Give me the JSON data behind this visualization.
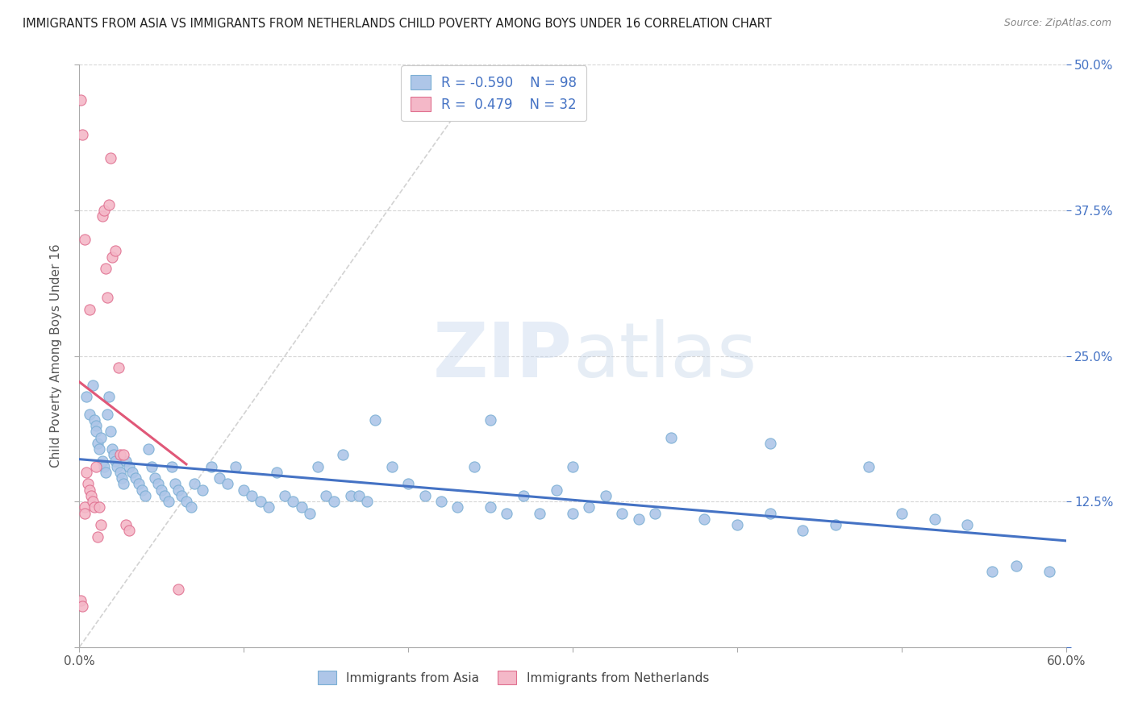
{
  "title": "IMMIGRANTS FROM ASIA VS IMMIGRANTS FROM NETHERLANDS CHILD POVERTY AMONG BOYS UNDER 16 CORRELATION CHART",
  "source": "Source: ZipAtlas.com",
  "ylabel": "Child Poverty Among Boys Under 16",
  "xmin": 0.0,
  "xmax": 0.6,
  "ymin": 0.0,
  "ymax": 0.5,
  "yticks": [
    0.0,
    0.125,
    0.25,
    0.375,
    0.5
  ],
  "ytick_labels": [
    "",
    "12.5%",
    "25.0%",
    "37.5%",
    "50.0%"
  ],
  "xtick_positions": [
    0.0,
    0.1,
    0.2,
    0.3,
    0.4,
    0.5,
    0.6
  ],
  "legend_series": [
    {
      "label": "Immigrants from Asia",
      "color": "#aec6e8",
      "edge_color": "#7bafd4",
      "trend_color": "#4472c4",
      "R": -0.59,
      "N": 98
    },
    {
      "label": "Immigrants from Netherlands",
      "color": "#f4b8c8",
      "edge_color": "#e07090",
      "trend_color": "#e05878",
      "R": 0.479,
      "N": 32
    }
  ],
  "series_asia_x": [
    0.004,
    0.006,
    0.008,
    0.009,
    0.01,
    0.01,
    0.011,
    0.012,
    0.013,
    0.014,
    0.015,
    0.016,
    0.017,
    0.018,
    0.019,
    0.02,
    0.021,
    0.022,
    0.023,
    0.025,
    0.026,
    0.027,
    0.028,
    0.03,
    0.032,
    0.034,
    0.036,
    0.038,
    0.04,
    0.042,
    0.044,
    0.046,
    0.048,
    0.05,
    0.052,
    0.054,
    0.056,
    0.058,
    0.06,
    0.062,
    0.065,
    0.068,
    0.07,
    0.075,
    0.08,
    0.085,
    0.09,
    0.095,
    0.1,
    0.105,
    0.11,
    0.115,
    0.12,
    0.125,
    0.13,
    0.135,
    0.14,
    0.145,
    0.15,
    0.155,
    0.16,
    0.165,
    0.17,
    0.175,
    0.18,
    0.19,
    0.2,
    0.21,
    0.22,
    0.23,
    0.24,
    0.25,
    0.26,
    0.27,
    0.28,
    0.29,
    0.3,
    0.31,
    0.32,
    0.33,
    0.34,
    0.35,
    0.36,
    0.38,
    0.4,
    0.42,
    0.44,
    0.46,
    0.48,
    0.5,
    0.52,
    0.54,
    0.555,
    0.57,
    0.25,
    0.3,
    0.42,
    0.59
  ],
  "series_asia_y": [
    0.215,
    0.2,
    0.225,
    0.195,
    0.19,
    0.185,
    0.175,
    0.17,
    0.18,
    0.16,
    0.155,
    0.15,
    0.2,
    0.215,
    0.185,
    0.17,
    0.165,
    0.16,
    0.155,
    0.15,
    0.145,
    0.14,
    0.16,
    0.155,
    0.15,
    0.145,
    0.14,
    0.135,
    0.13,
    0.17,
    0.155,
    0.145,
    0.14,
    0.135,
    0.13,
    0.125,
    0.155,
    0.14,
    0.135,
    0.13,
    0.125,
    0.12,
    0.14,
    0.135,
    0.155,
    0.145,
    0.14,
    0.155,
    0.135,
    0.13,
    0.125,
    0.12,
    0.15,
    0.13,
    0.125,
    0.12,
    0.115,
    0.155,
    0.13,
    0.125,
    0.165,
    0.13,
    0.13,
    0.125,
    0.195,
    0.155,
    0.14,
    0.13,
    0.125,
    0.12,
    0.155,
    0.12,
    0.115,
    0.13,
    0.115,
    0.135,
    0.115,
    0.12,
    0.13,
    0.115,
    0.11,
    0.115,
    0.18,
    0.11,
    0.105,
    0.115,
    0.1,
    0.105,
    0.155,
    0.115,
    0.11,
    0.105,
    0.065,
    0.07,
    0.195,
    0.155,
    0.175,
    0.065
  ],
  "series_neth_x": [
    0.001,
    0.002,
    0.003,
    0.003,
    0.004,
    0.005,
    0.006,
    0.007,
    0.008,
    0.009,
    0.01,
    0.011,
    0.012,
    0.013,
    0.014,
    0.015,
    0.016,
    0.017,
    0.018,
    0.019,
    0.02,
    0.022,
    0.024,
    0.025,
    0.027,
    0.028,
    0.03,
    0.001,
    0.002,
    0.003,
    0.006,
    0.06
  ],
  "series_neth_y": [
    0.04,
    0.035,
    0.12,
    0.115,
    0.15,
    0.14,
    0.135,
    0.13,
    0.125,
    0.12,
    0.155,
    0.095,
    0.12,
    0.105,
    0.37,
    0.375,
    0.325,
    0.3,
    0.38,
    0.42,
    0.335,
    0.34,
    0.24,
    0.165,
    0.165,
    0.105,
    0.1,
    0.47,
    0.44,
    0.35,
    0.29,
    0.05
  ],
  "diag_line_x": [
    0.0,
    0.25
  ],
  "diag_line_y": [
    0.0,
    0.5
  ],
  "watermark_zip": "ZIP",
  "watermark_atlas": "atlas",
  "background_color": "#ffffff",
  "grid_color": "#cccccc",
  "title_color": "#222222",
  "right_axis_color": "#4472c4"
}
